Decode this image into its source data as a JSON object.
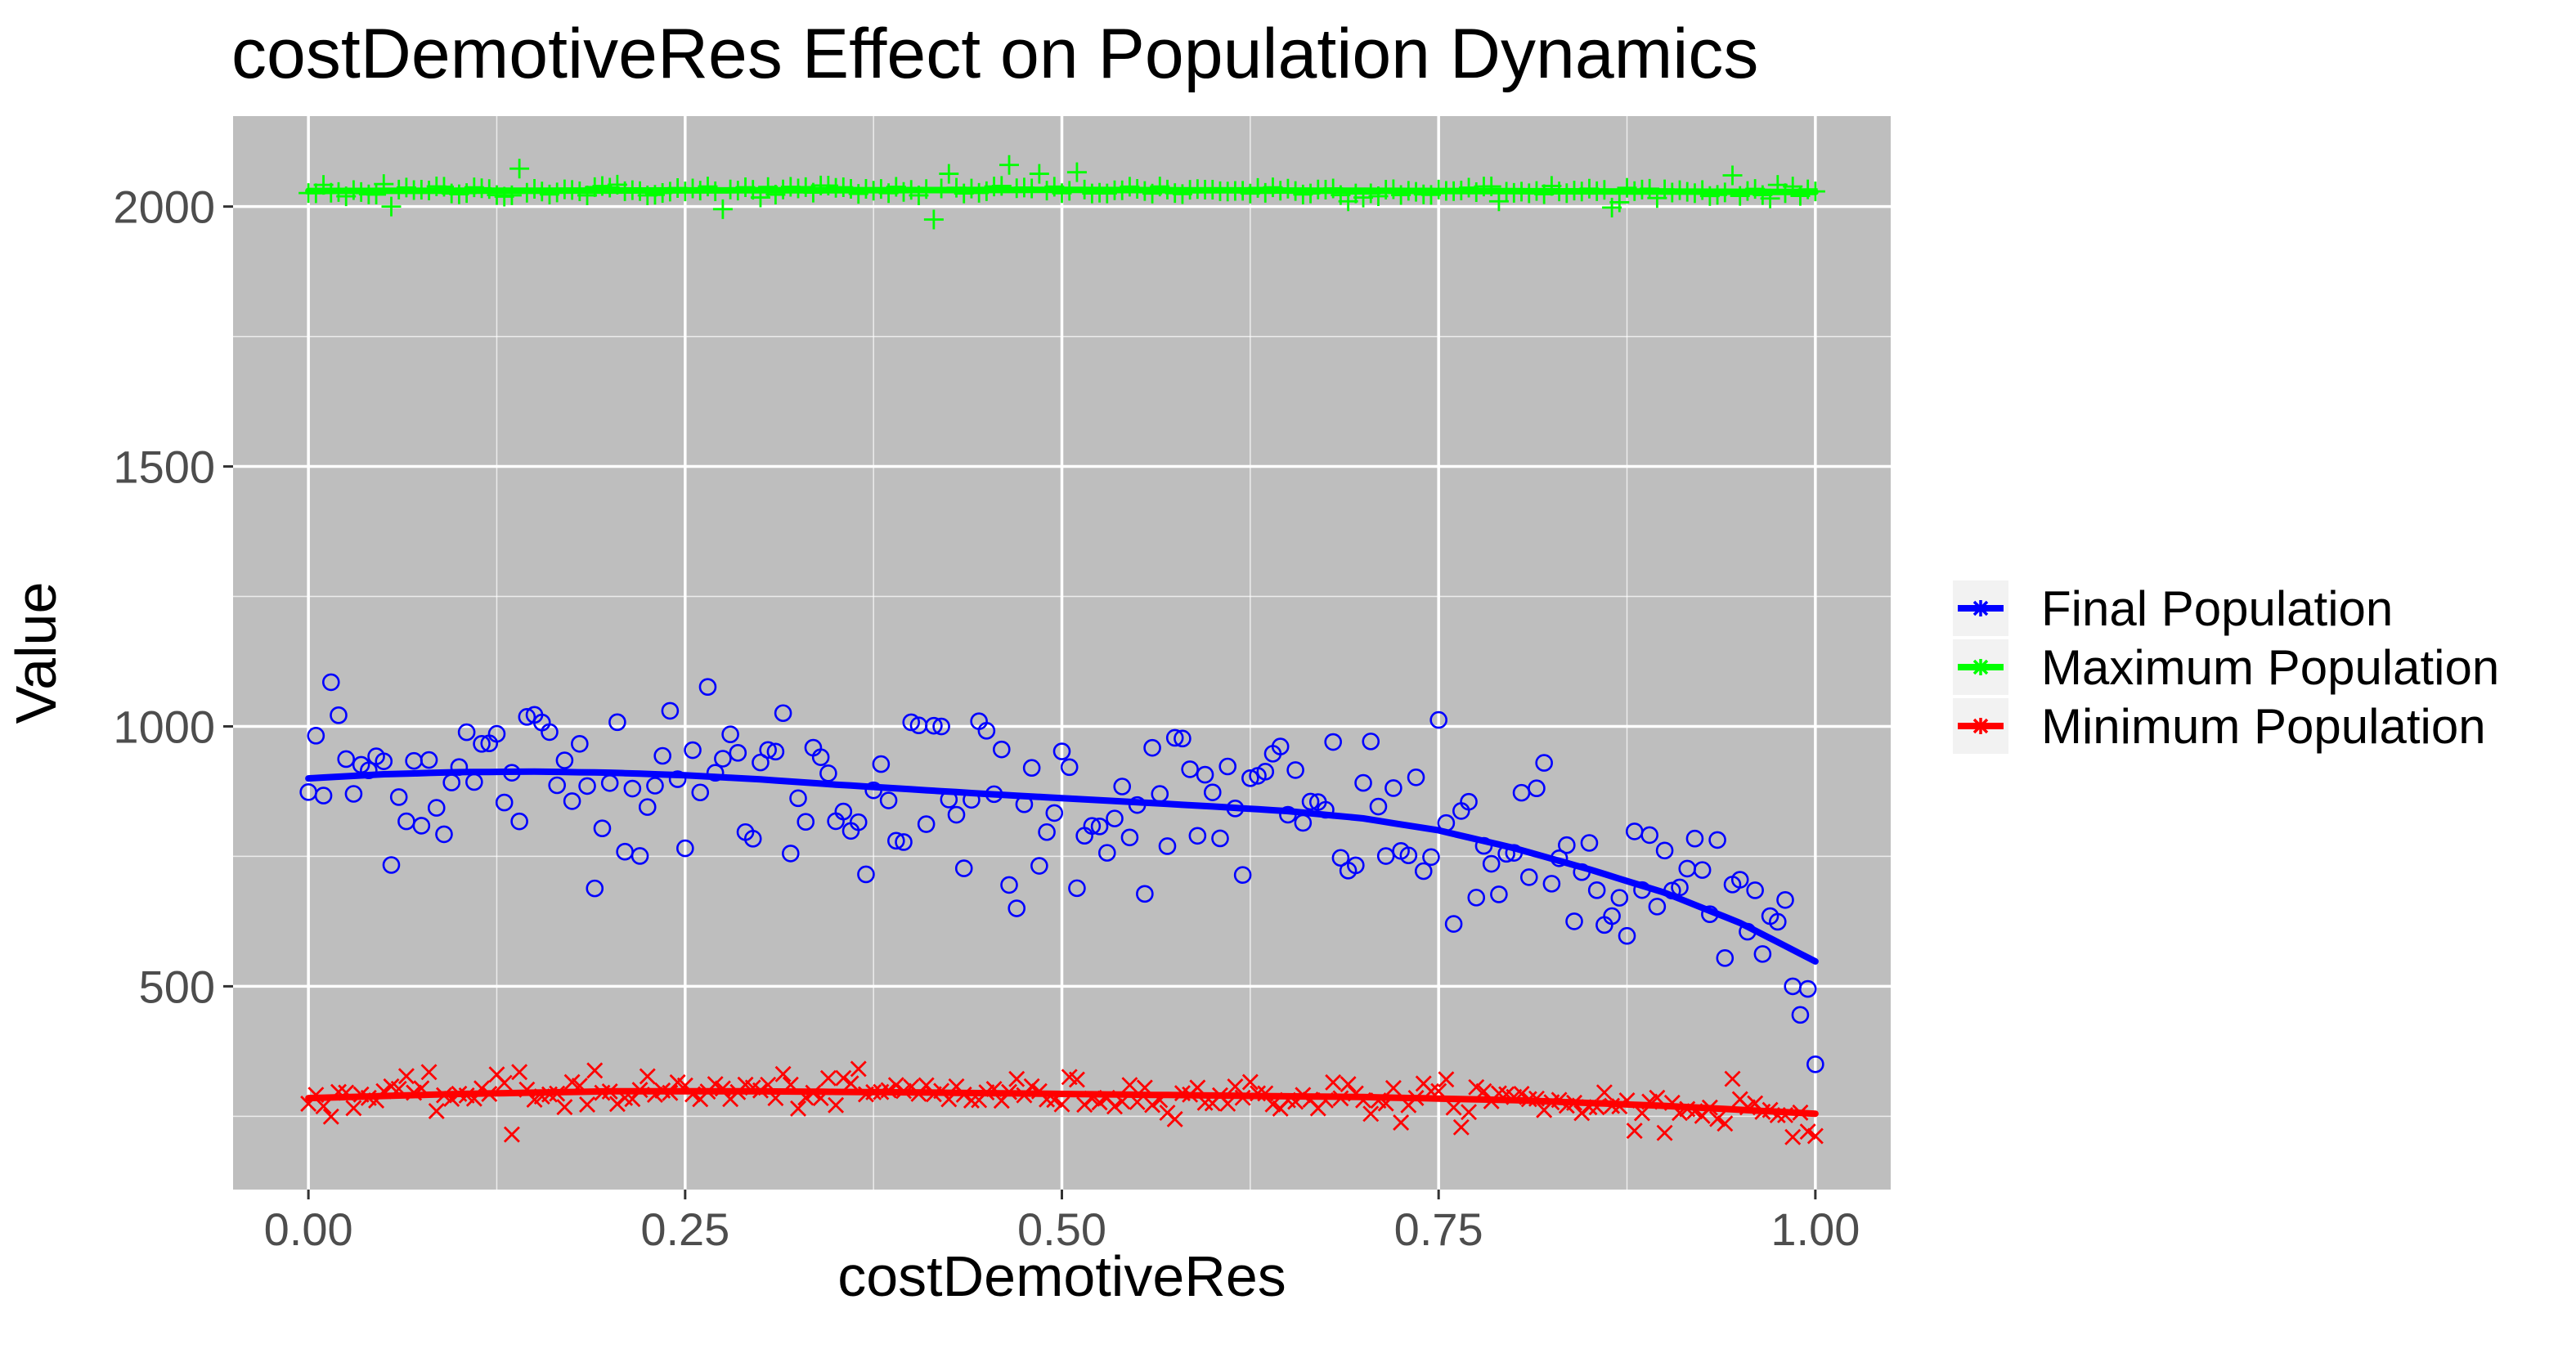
{
  "chart_data": {
    "type": "scatter",
    "title": "costDemotiveRes Effect on Population Dynamics",
    "xlabel": "costDemotiveRes",
    "ylabel": "Value",
    "xlim": [
      -0.05,
      1.05
    ],
    "ylim": [
      109,
      2174
    ],
    "x_ticks": [
      0,
      0.25,
      0.5,
      0.75,
      1
    ],
    "x_tick_labels": [
      "0.00",
      "0.25",
      "0.50",
      "0.75",
      "1.00"
    ],
    "y_ticks": [
      500,
      1000,
      1500,
      2000
    ],
    "y_tick_labels": [
      "500",
      "1000",
      "1500",
      "2000"
    ],
    "grid": true,
    "legend_position": "right",
    "n_points_per_series": 201,
    "series": [
      {
        "name": "Final Population",
        "color": "#0000ff",
        "marker": "circle",
        "smooth": [
          [
            0,
            900
          ],
          [
            0.05,
            908
          ],
          [
            0.1,
            912
          ],
          [
            0.15,
            913
          ],
          [
            0.2,
            911
          ],
          [
            0.25,
            906
          ],
          [
            0.3,
            898
          ],
          [
            0.35,
            888
          ],
          [
            0.4,
            879
          ],
          [
            0.45,
            870
          ],
          [
            0.5,
            862
          ],
          [
            0.55,
            854
          ],
          [
            0.6,
            846
          ],
          [
            0.65,
            837
          ],
          [
            0.7,
            823
          ],
          [
            0.75,
            800
          ],
          [
            0.8,
            766
          ],
          [
            0.85,
            725
          ],
          [
            0.9,
            680
          ],
          [
            0.95,
            622
          ],
          [
            1,
            548
          ]
        ],
        "highlights": [
          [
            0.015,
            1085
          ],
          [
            0.24,
            1030
          ],
          [
            0.39,
            780
          ],
          [
            0.465,
            695
          ],
          [
            0.47,
            650
          ],
          [
            0.76,
            620
          ],
          [
            0.84,
            625
          ],
          [
            0.86,
            618
          ],
          [
            0.95,
            705
          ],
          [
            0.97,
            635
          ],
          [
            0.985,
            500
          ],
          [
            0.99,
            445
          ],
          [
            0.995,
            495
          ],
          [
            1.0,
            350
          ]
        ]
      },
      {
        "name": "Maximum Population",
        "color": "#00ff00",
        "marker": "plus",
        "smooth": [
          [
            0,
            2030
          ],
          [
            0.5,
            2032
          ],
          [
            1,
            2028
          ]
        ],
        "highlights": [
          [
            0.055,
            2000
          ],
          [
            0.14,
            2073
          ],
          [
            0.275,
            1995
          ],
          [
            0.415,
            1975
          ],
          [
            0.425,
            2063
          ],
          [
            0.465,
            2080
          ],
          [
            0.485,
            2063
          ],
          [
            0.51,
            2066
          ],
          [
            0.69,
            2010
          ],
          [
            0.79,
            2010
          ],
          [
            0.865,
            1998
          ],
          [
            0.945,
            2060
          ]
        ]
      },
      {
        "name": "Minimum Population",
        "color": "#ff0000",
        "marker": "x",
        "smooth": [
          [
            0,
            285
          ],
          [
            0.1,
            293
          ],
          [
            0.2,
            298
          ],
          [
            0.3,
            298
          ],
          [
            0.4,
            296
          ],
          [
            0.5,
            293
          ],
          [
            0.6,
            290
          ],
          [
            0.7,
            287
          ],
          [
            0.8,
            281
          ],
          [
            0.9,
            270
          ],
          [
            1,
            255
          ]
        ],
        "highlights": [
          [
            0.135,
            215
          ],
          [
            0.14,
            335
          ],
          [
            0.19,
            338
          ],
          [
            0.725,
            238
          ],
          [
            0.88,
            222
          ],
          [
            0.9,
            218
          ],
          [
            0.945,
            322
          ],
          [
            0.985,
            210
          ],
          [
            1.0,
            212
          ]
        ]
      }
    ]
  }
}
